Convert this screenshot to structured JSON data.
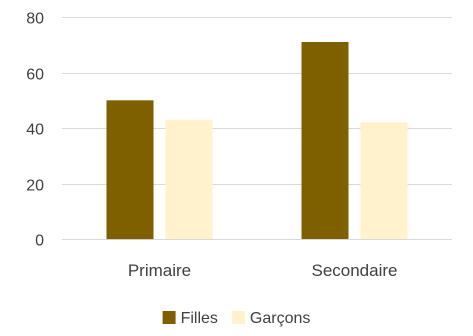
{
  "chart_data": {
    "type": "bar",
    "categories": [
      "Primaire",
      "Secondaire"
    ],
    "series": [
      {
        "name": "Filles",
        "values": [
          50,
          71
        ],
        "color": "#7f6000"
      },
      {
        "name": "Garçons",
        "values": [
          43,
          42
        ],
        "color": "#fff2cc"
      }
    ],
    "title": "",
    "xlabel": "",
    "ylabel": "",
    "ylim": [
      0,
      80
    ],
    "yticks": [
      0,
      20,
      40,
      60,
      80
    ],
    "grid": true,
    "legend_position": "bottom"
  }
}
